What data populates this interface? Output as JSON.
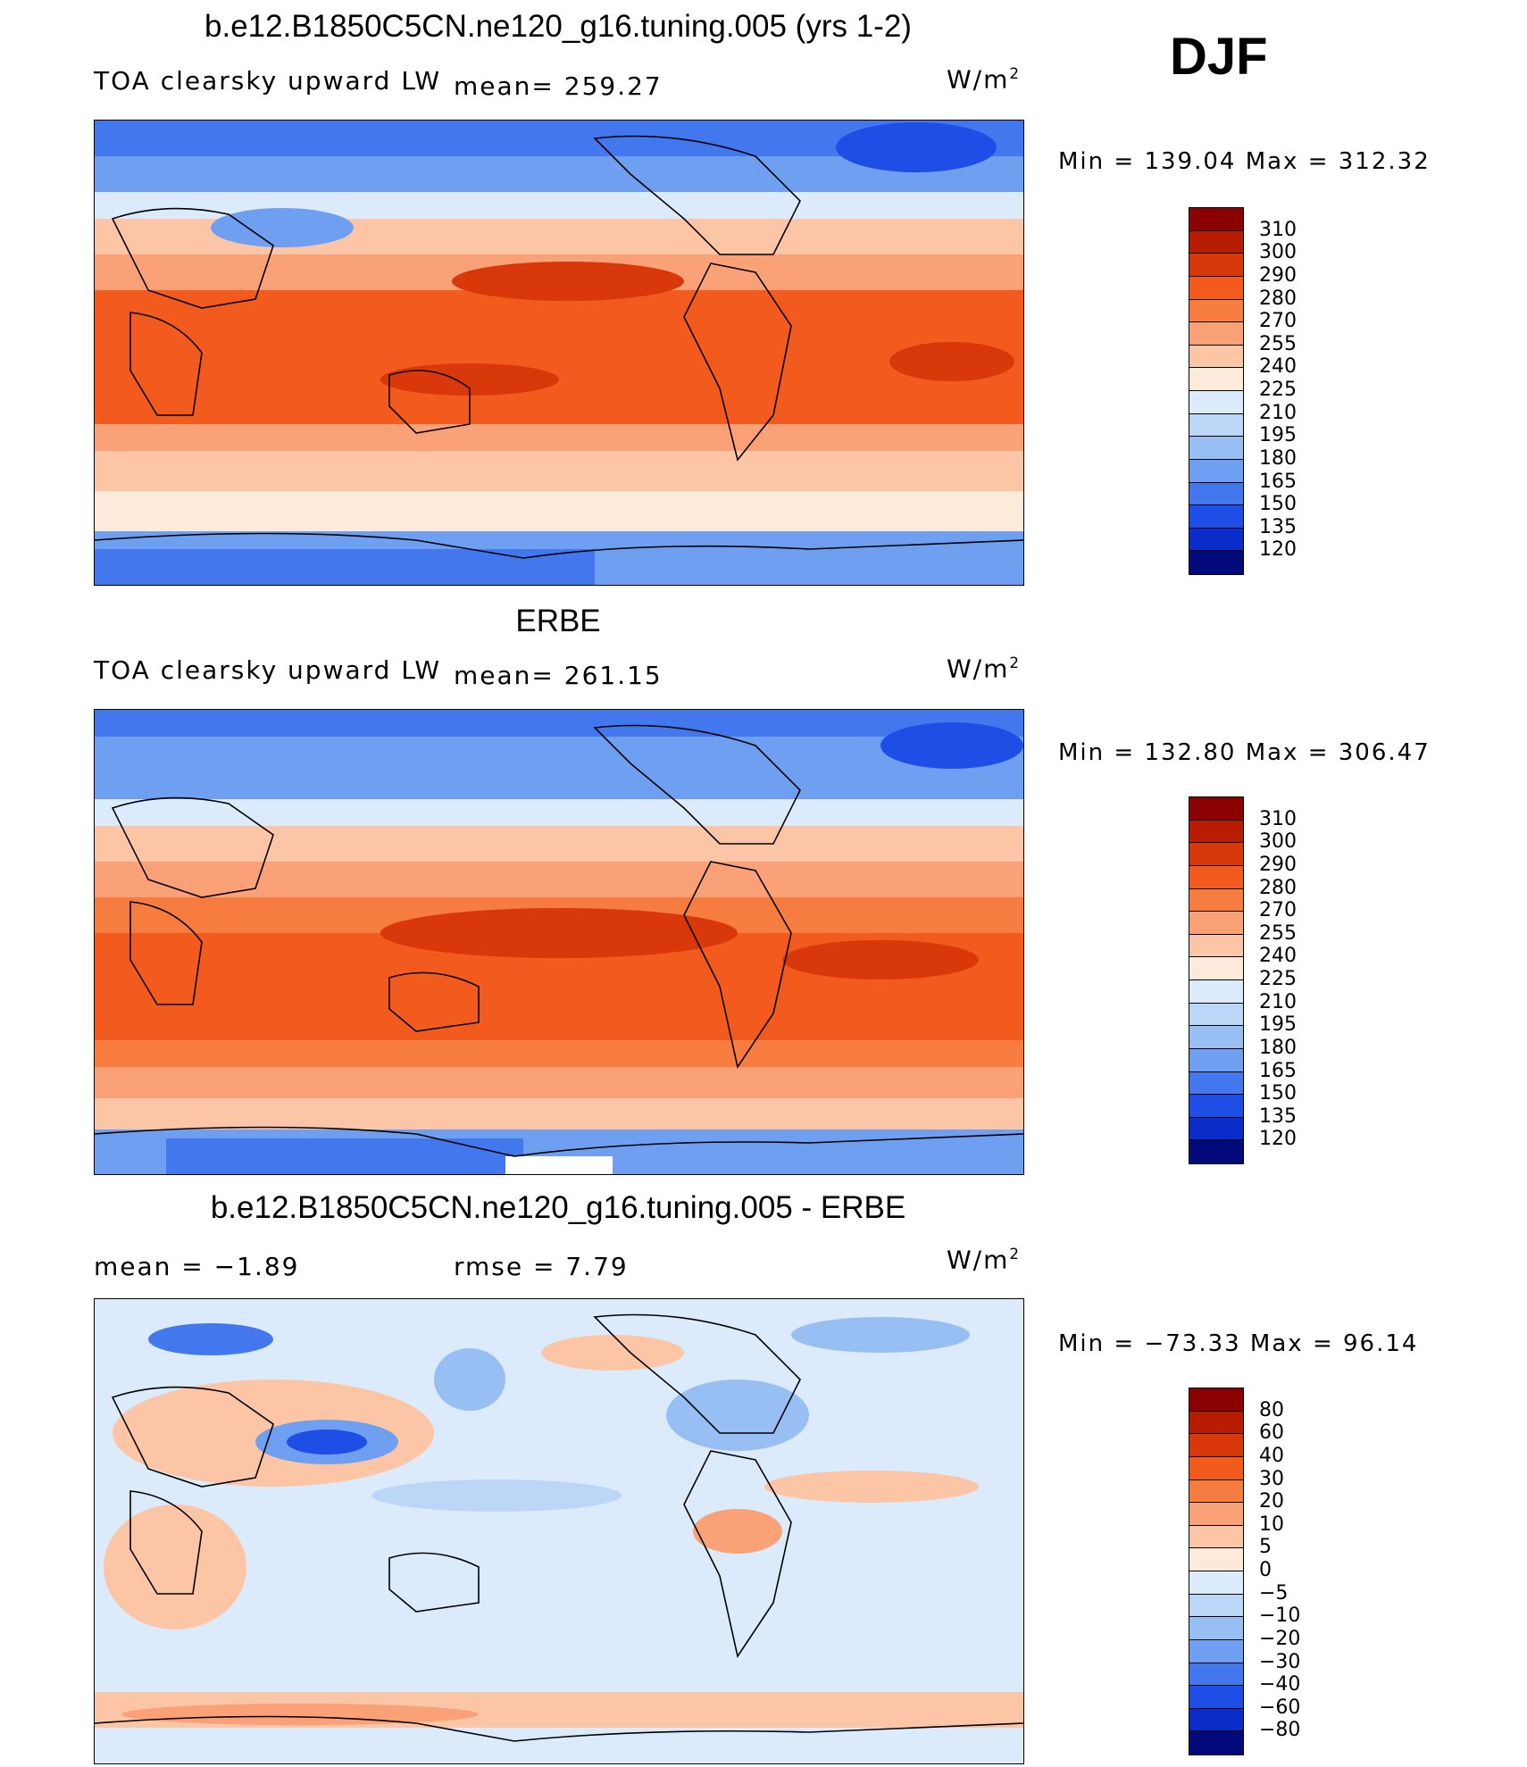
{
  "season": "DJF",
  "units_base": "W/m",
  "units_exp": "2",
  "panels": [
    {
      "title": "b.e12.B1850C5CN.ne120_g16.tuning.005 (yrs 1-2)",
      "left_label": "TOA clearsky upward LW",
      "mean_text": "mean= 259.27",
      "minmax": "Min  =  139.04  Max  =  312.32"
    },
    {
      "title": "ERBE",
      "left_label": "TOA clearsky upward LW",
      "mean_text": "mean= 261.15",
      "minmax": "Min  =  132.80  Max  =  306.47"
    },
    {
      "title": "b.e12.B1850C5CN.ne120_g16.tuning.005 - ERBE",
      "left_label": "mean =    −1.89",
      "mean_text": "rmse =     7.79",
      "minmax": "Min  = −73.33  Max  =   96.14"
    }
  ],
  "colorbar_abs": {
    "labels": [
      "310",
      "300",
      "290",
      "280",
      "270",
      "255",
      "240",
      "225",
      "210",
      "195",
      "180",
      "165",
      "150",
      "135",
      "120"
    ],
    "colors": [
      "#8b0000",
      "#b81c00",
      "#d9380a",
      "#f25a1e",
      "#f77c3f",
      "#fba177",
      "#fcc6a6",
      "#feeadb",
      "#dcebfb",
      "#bcd6f7",
      "#97bff3",
      "#6f9ff0",
      "#4377ee",
      "#1e4ee6",
      "#0a2cc8",
      "#000a7a"
    ]
  },
  "colorbar_diff": {
    "labels": [
      "80",
      "60",
      "40",
      "30",
      "20",
      "10",
      "5",
      "0",
      "−5",
      "−10",
      "−20",
      "−30",
      "−40",
      "−60",
      "−80"
    ],
    "colors": [
      "#8b0000",
      "#b81c00",
      "#d9380a",
      "#f25a1e",
      "#f77c3f",
      "#fba177",
      "#fcc6a6",
      "#feeadb",
      "#dcebfb",
      "#bcd6f7",
      "#97bff3",
      "#6f9ff0",
      "#4377ee",
      "#1e4ee6",
      "#0a2cc8",
      "#000a7a"
    ]
  }
}
